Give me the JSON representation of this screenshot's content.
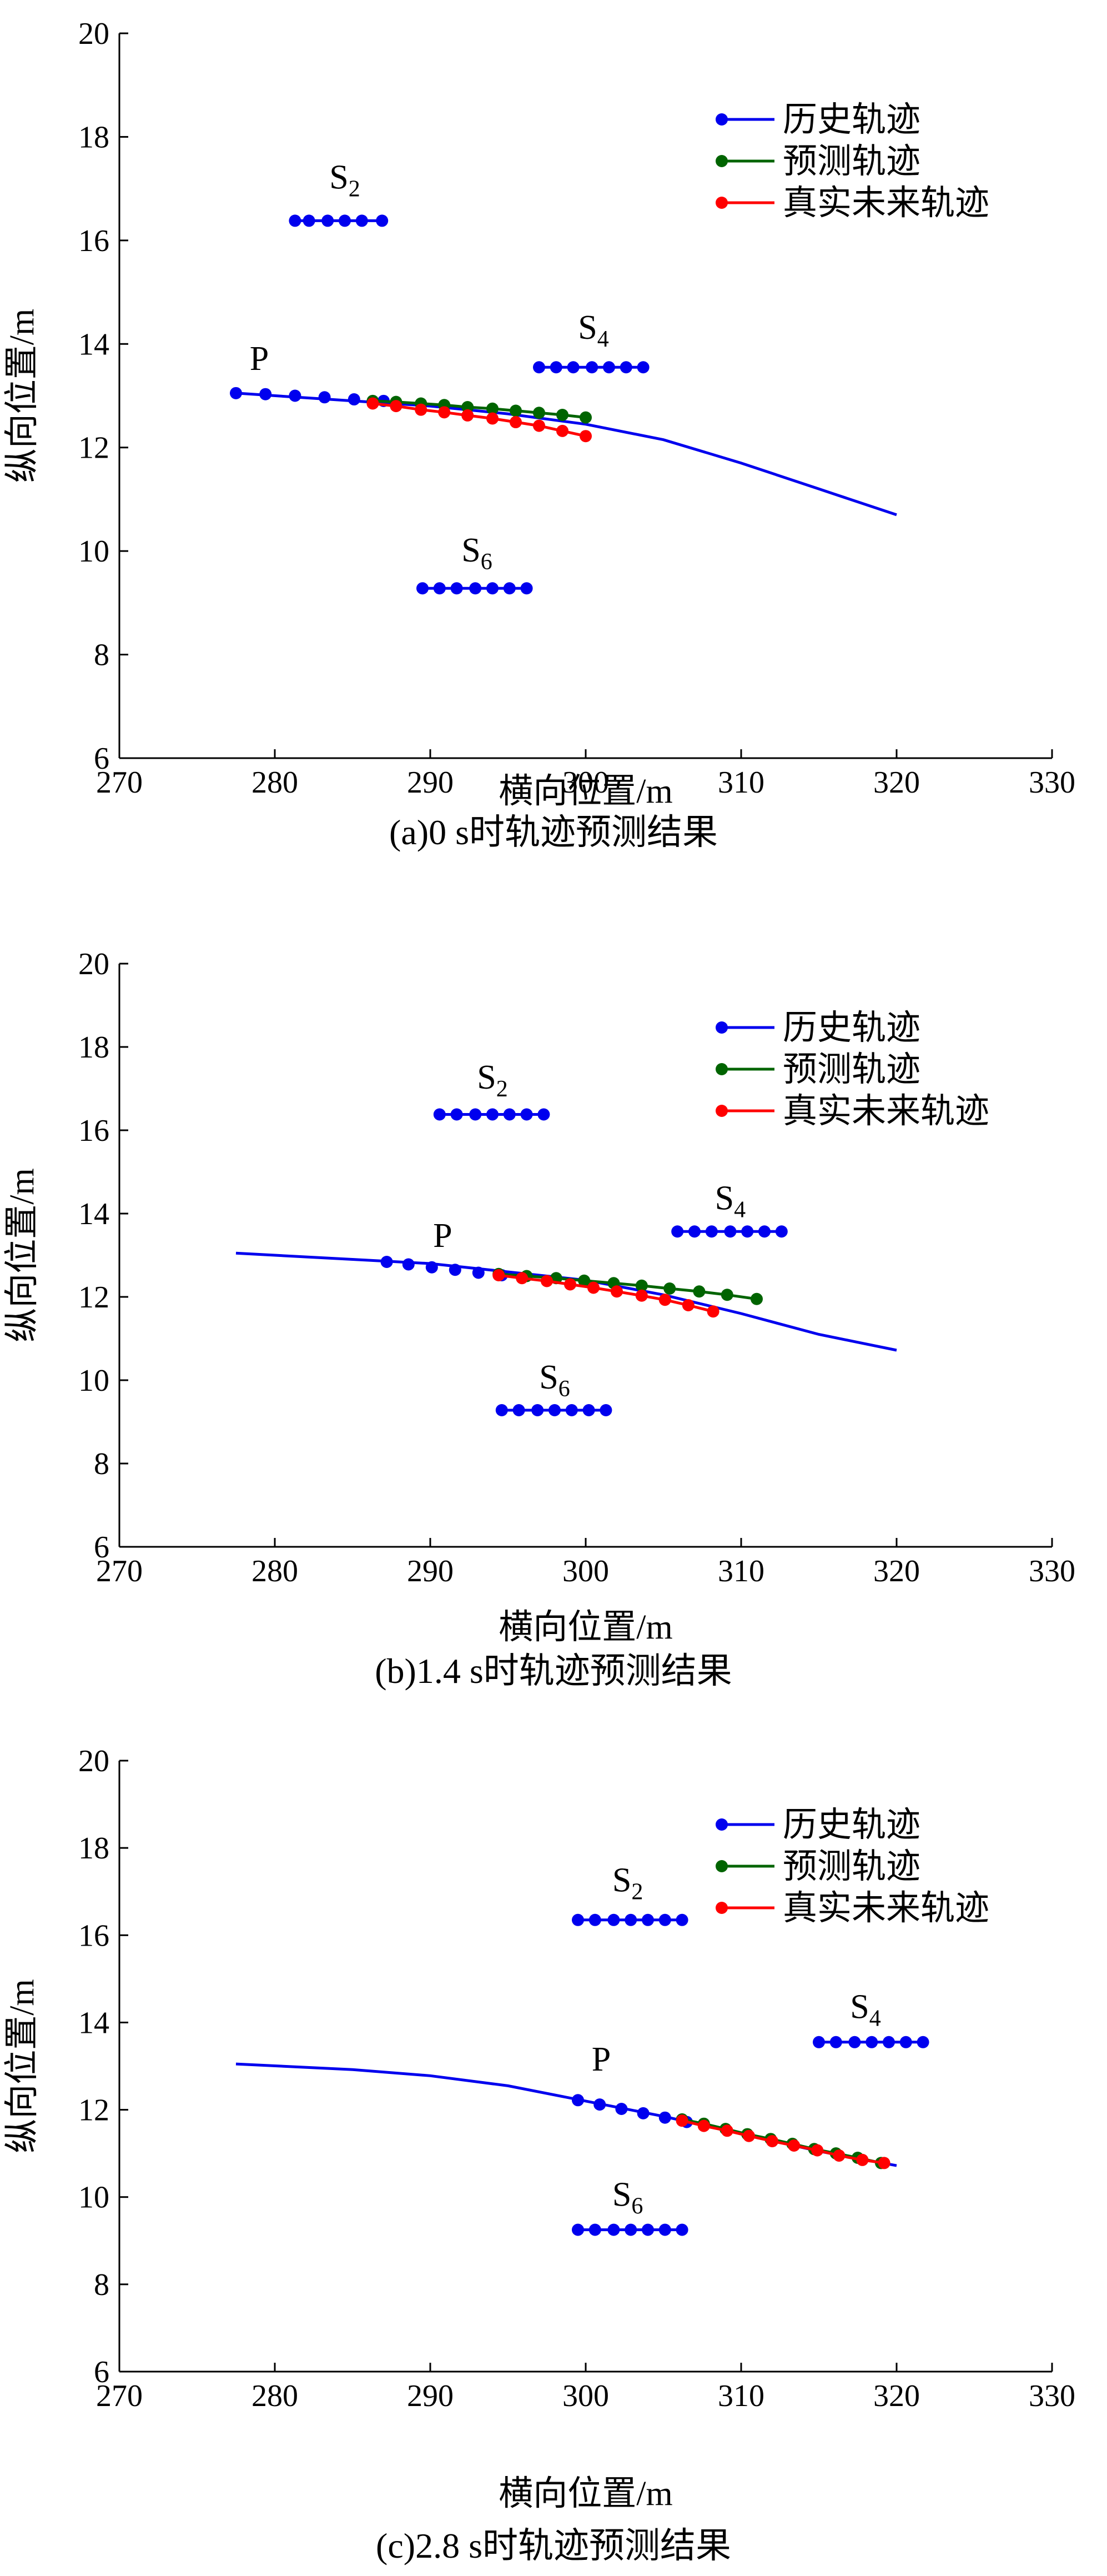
{
  "chart_data": [
    {
      "type": "scatter",
      "caption": "(a)0 s时轨迹预测结果",
      "xlabel": "横向位置/m",
      "ylabel": "纵向位置/m",
      "xlim": [
        270,
        330
      ],
      "ylim": [
        6,
        20
      ],
      "xticks": [
        270,
        280,
        290,
        300,
        310,
        320,
        330
      ],
      "yticks": [
        6,
        8,
        10,
        12,
        14,
        16,
        18,
        20
      ],
      "legend": [
        "历史轨迹",
        "预测轨迹",
        "真实未来轨迹"
      ],
      "legend_position": "top-right",
      "colors": {
        "history": "#0000ee",
        "predicted": "#006400",
        "actual": "#ff0000"
      },
      "history_path": {
        "x": [
          277.5,
          285,
          290,
          295,
          300,
          305,
          310,
          315,
          320
        ],
        "y": [
          13.05,
          12.9,
          12.8,
          12.65,
          12.45,
          12.15,
          11.7,
          11.2,
          10.7
        ]
      },
      "history_points": {
        "x": [
          277.5,
          279.4,
          281.3,
          283.2,
          285.1,
          287.0
        ],
        "y": [
          13.05,
          13.03,
          13.0,
          12.97,
          12.93,
          12.9
        ]
      },
      "predicted": {
        "x": [
          286.3,
          287.8,
          289.4,
          290.9,
          292.4,
          294.0,
          295.5,
          297.0,
          298.5,
          300.0
        ],
        "y": [
          12.9,
          12.88,
          12.85,
          12.82,
          12.78,
          12.75,
          12.71,
          12.67,
          12.63,
          12.58
        ]
      },
      "actual": {
        "x": [
          286.3,
          287.8,
          289.4,
          290.9,
          292.4,
          294.0,
          295.5,
          297.0,
          298.5,
          300.0
        ],
        "y": [
          12.85,
          12.8,
          12.73,
          12.68,
          12.62,
          12.56,
          12.49,
          12.42,
          12.32,
          12.22
        ]
      },
      "obstacles": [
        {
          "label": "S",
          "sub": "2",
          "x": [
            281.3,
            282.2,
            283.4,
            284.5,
            285.6,
            286.9
          ],
          "y": 16.38,
          "label_at": [
            284.5,
            17.0
          ]
        },
        {
          "label": "S",
          "sub": "4",
          "x": [
            297.0,
            298.1,
            299.2,
            300.4,
            301.5,
            302.6,
            303.7
          ],
          "y": 13.55,
          "label_at": [
            300.5,
            14.1
          ]
        },
        {
          "label": "S",
          "sub": "6",
          "x": [
            289.5,
            290.6,
            291.7,
            292.9,
            294.0,
            295.1,
            296.2
          ],
          "y": 9.28,
          "label_at": [
            293.0,
            9.8
          ]
        }
      ],
      "point_label": {
        "text": "P",
        "at": [
          279.0,
          13.5
        ]
      }
    },
    {
      "type": "scatter",
      "caption": "(b)1.4 s时轨迹预测结果",
      "xlabel": "横向位置/m",
      "ylabel": "纵向位置/m",
      "xlim": [
        270,
        330
      ],
      "ylim": [
        6,
        20
      ],
      "xticks": [
        270,
        280,
        290,
        300,
        310,
        320,
        330
      ],
      "yticks": [
        6,
        8,
        10,
        12,
        14,
        16,
        18,
        20
      ],
      "legend": [
        "历史轨迹",
        "预测轨迹",
        "真实未来轨迹"
      ],
      "legend_position": "top-right",
      "colors": {
        "history": "#0000ee",
        "predicted": "#006400",
        "actual": "#ff0000"
      },
      "history_path": {
        "x": [
          277.5,
          285,
          290,
          295,
          300,
          305,
          310,
          315,
          320
        ],
        "y": [
          13.05,
          12.9,
          12.8,
          12.6,
          12.4,
          12.05,
          11.6,
          11.1,
          10.72
        ]
      },
      "history_points": {
        "x": [
          287.2,
          288.6,
          290.1,
          291.6,
          293.1,
          294.6
        ],
        "y": [
          12.84,
          12.78,
          12.71,
          12.65,
          12.58,
          12.52
        ]
      },
      "predicted": {
        "x": [
          294.4,
          296.2,
          298.1,
          299.9,
          301.8,
          303.6,
          305.4,
          307.3,
          309.1,
          311.0
        ],
        "y": [
          12.55,
          12.5,
          12.45,
          12.39,
          12.33,
          12.27,
          12.2,
          12.13,
          12.05,
          11.95
        ]
      },
      "actual": {
        "x": [
          294.4,
          295.9,
          297.5,
          299.0,
          300.5,
          302.0,
          303.6,
          305.1,
          306.6,
          308.2
        ],
        "y": [
          12.52,
          12.45,
          12.38,
          12.3,
          12.22,
          12.13,
          12.03,
          11.93,
          11.8,
          11.65
        ]
      },
      "obstacles": [
        {
          "label": "S",
          "sub": "2",
          "x": [
            290.6,
            291.7,
            292.9,
            294.0,
            295.1,
            296.2,
            297.3
          ],
          "y": 16.38,
          "label_at": [
            294.0,
            17.0
          ]
        },
        {
          "label": "S",
          "sub": "4",
          "x": [
            305.9,
            307.0,
            308.1,
            309.3,
            310.4,
            311.5,
            312.6
          ],
          "y": 13.57,
          "label_at": [
            309.3,
            14.1
          ]
        },
        {
          "label": "S",
          "sub": "6",
          "x": [
            294.6,
            295.7,
            296.9,
            298.0,
            299.1,
            300.2,
            301.3
          ],
          "y": 9.28,
          "label_at": [
            298.0,
            9.8
          ]
        }
      ],
      "point_label": {
        "text": "P",
        "at": [
          290.8,
          13.2
        ]
      }
    },
    {
      "type": "scatter",
      "caption": "(c)2.8 s时轨迹预测结果",
      "xlabel": "横向位置/m",
      "ylabel": "纵向位置/m",
      "xlim": [
        270,
        330
      ],
      "ylim": [
        6,
        20
      ],
      "xticks": [
        270,
        280,
        290,
        300,
        310,
        320,
        330
      ],
      "yticks": [
        6,
        8,
        10,
        12,
        14,
        16,
        18,
        20
      ],
      "legend": [
        "历史轨迹",
        "预测轨迹",
        "真实未来轨迹"
      ],
      "legend_position": "top-right",
      "colors": {
        "history": "#0000ee",
        "predicted": "#006400",
        "actual": "#ff0000"
      },
      "history_path": {
        "x": [
          277.5,
          285,
          290,
          295,
          300,
          305,
          310,
          315,
          320
        ],
        "y": [
          13.05,
          12.92,
          12.78,
          12.55,
          12.2,
          11.85,
          11.45,
          11.05,
          10.72
        ]
      },
      "history_points": {
        "x": [
          299.5,
          300.9,
          302.3,
          303.7,
          305.1,
          306.5
        ],
        "y": [
          12.22,
          12.12,
          12.02,
          11.92,
          11.82,
          11.72
        ]
      },
      "predicted": {
        "x": [
          306.2,
          307.6,
          309.0,
          310.4,
          311.9,
          313.3,
          314.7,
          316.1,
          317.5,
          319.0
        ],
        "y": [
          11.78,
          11.68,
          11.56,
          11.44,
          11.33,
          11.22,
          11.1,
          11.0,
          10.9,
          10.78
        ]
      },
      "actual": {
        "x": [
          306.2,
          307.6,
          309.1,
          310.5,
          312.0,
          313.4,
          314.9,
          316.3,
          317.8,
          319.2
        ],
        "y": [
          11.75,
          11.63,
          11.52,
          11.4,
          11.28,
          11.18,
          11.07,
          10.95,
          10.85,
          10.78
        ]
      },
      "obstacles": [
        {
          "label": "S",
          "sub": "2",
          "x": [
            299.5,
            300.6,
            301.8,
            302.9,
            304.0,
            305.1,
            306.2
          ],
          "y": 16.35,
          "label_at": [
            302.7,
            17.0
          ]
        },
        {
          "label": "S",
          "sub": "4",
          "x": [
            315.0,
            316.1,
            317.3,
            318.4,
            319.5,
            320.6,
            321.7
          ],
          "y": 13.55,
          "label_at": [
            318.0,
            14.1
          ]
        },
        {
          "label": "S",
          "sub": "6",
          "x": [
            299.5,
            300.6,
            301.8,
            302.9,
            304.0,
            305.1,
            306.2
          ],
          "y": 9.25,
          "label_at": [
            302.7,
            9.8
          ]
        }
      ],
      "point_label": {
        "text": "P",
        "at": [
          301.0,
          12.9
        ]
      }
    }
  ]
}
